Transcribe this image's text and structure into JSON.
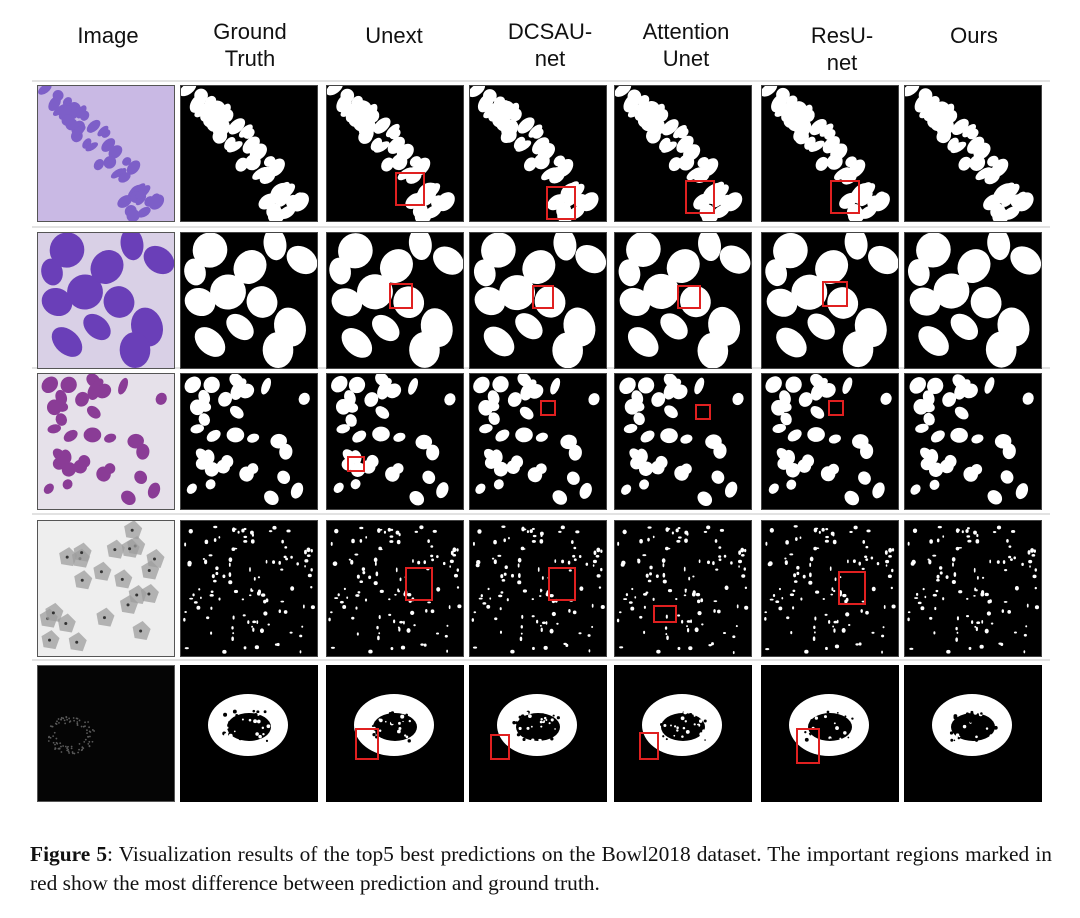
{
  "figure": {
    "columns": [
      "Image",
      "Ground\nTruth",
      "Unext",
      "DCSAU-\nnet",
      "Attention\nUnet",
      "ResU-\nnet",
      "Ours"
    ],
    "rows": [
      {
        "image_tile": "purple-sparse-cell-image",
        "style": "elongated-band"
      },
      {
        "image_tile": "purple-large-nuclei-image",
        "style": "large-blobs"
      },
      {
        "image_tile": "pink-scattered-cells-image",
        "style": "scattered-medium"
      },
      {
        "image_tile": "gray-tissue-image",
        "style": "tiny-dots"
      },
      {
        "image_tile": "dark-fluorescence-ring-image",
        "style": "ring"
      }
    ],
    "highlight_color": "#e02020"
  },
  "caption": {
    "label": "Figure 5",
    "text": ": Visualization results of the top5 best predictions on the Bowl2018 dataset. The important regions marked in red show the most difference between prediction and ground truth."
  }
}
